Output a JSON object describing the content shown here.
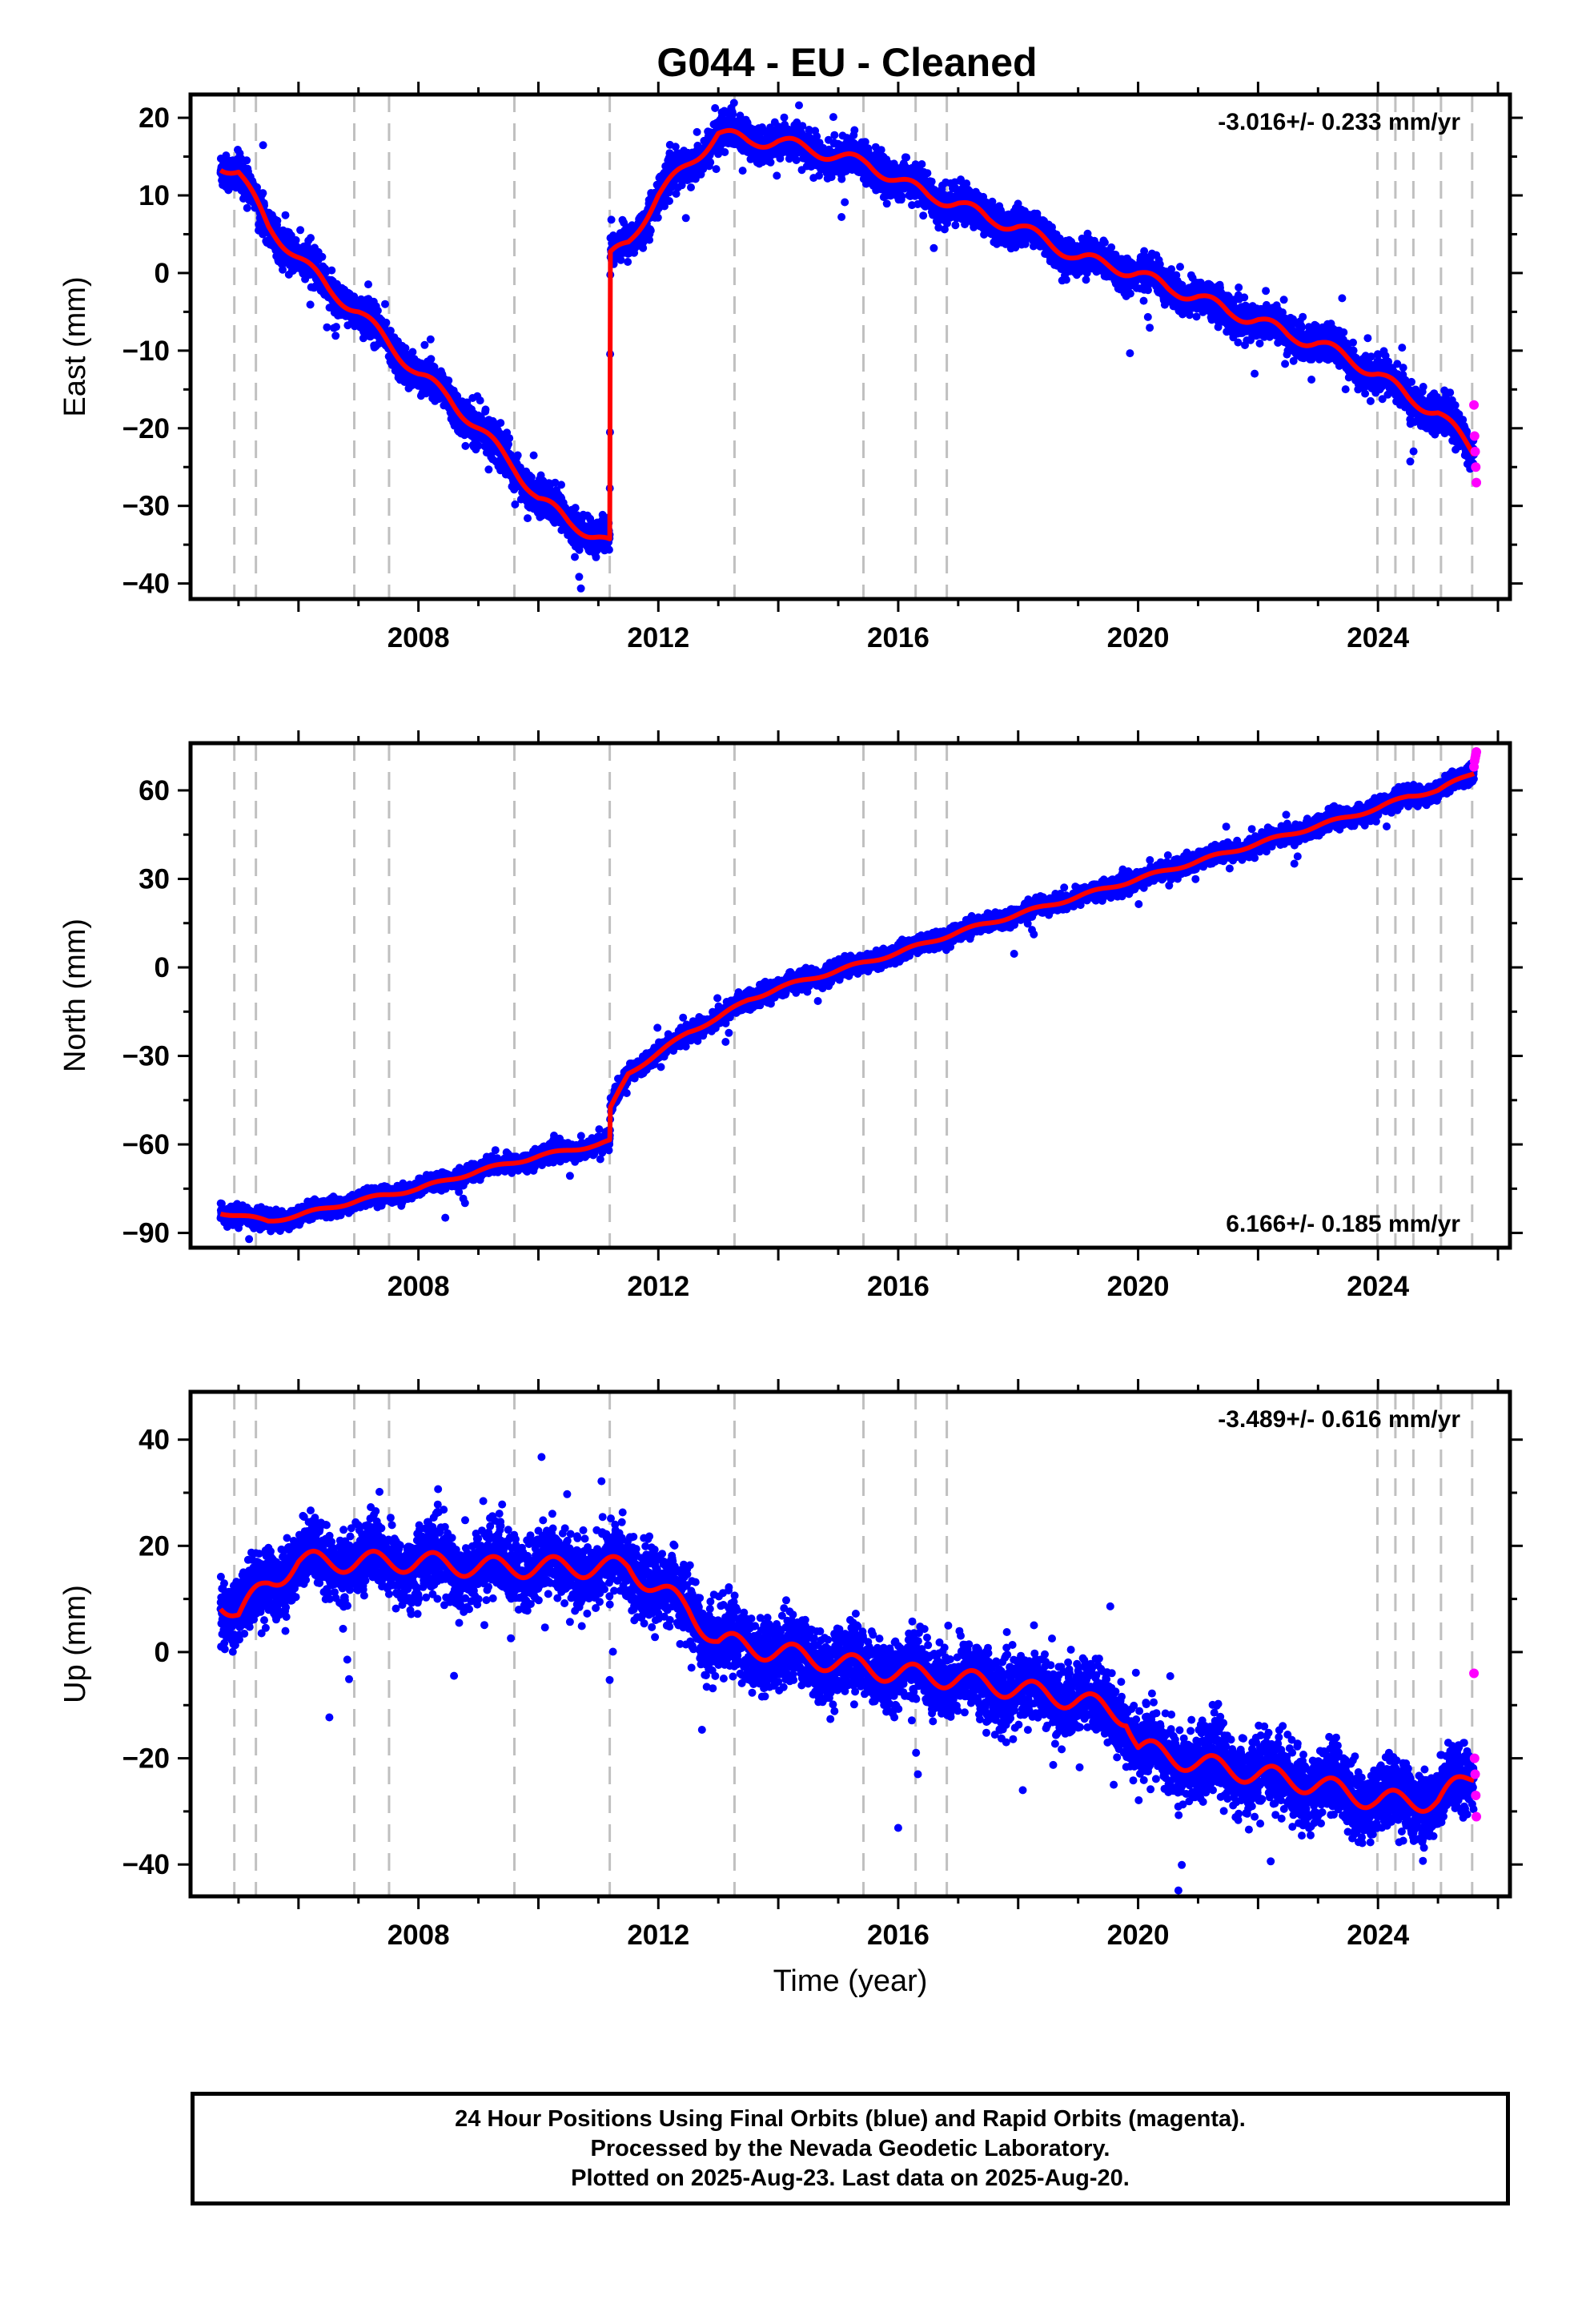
{
  "title": "G044  - EU - Cleaned",
  "footer": {
    "line1": "24 Hour Positions Using Final Orbits (blue) and Rapid Orbits (magenta).",
    "line2": "Processed by the Nevada Geodetic Laboratory.",
    "line3": "Plotted on 2025-Aug-23. Last data on 2025-Aug-20."
  },
  "colors": {
    "final_orbits": "#0000ff",
    "rapid_orbits": "#ff00ff",
    "model_fit": "#ff0000",
    "equipment_change_lines": "#c0c0c0"
  },
  "chart_data": [
    {
      "type": "scatter",
      "ylabel": "East (mm)",
      "xlabel": "",
      "rate_label": "-3.016+/- 0.233 mm/yr",
      "rate_position": "top-right",
      "xlim": [
        2004.2,
        2026.2
      ],
      "ylim": [
        -42,
        23
      ],
      "xticks": [
        2008,
        2012,
        2016,
        2020,
        2024
      ],
      "yticks": [
        -40,
        -30,
        -20,
        -10,
        0,
        10,
        20
      ],
      "grid": false,
      "rate_mm_per_yr": -3.016,
      "seasonal_amplitude_mm": 2,
      "noise_mm": 1.1,
      "offsets": [
        {
          "year": 2011.19,
          "from": -35,
          "to": 2
        }
      ],
      "series": [
        {
          "role": "fit",
          "x": [
            2004.7,
            2005.0,
            2005.5,
            2006.0,
            2006.5,
            2007.0,
            2007.5,
            2008.0,
            2008.5,
            2009.0,
            2009.6,
            2010.0,
            2010.5,
            2011.0,
            2011.19,
            2011.2,
            2011.5,
            2012.0,
            2012.5,
            2013.0,
            2013.5,
            2014.0,
            2014.5,
            2015.0,
            2015.5,
            2016.0,
            2016.5,
            2017.0,
            2017.5,
            2018.0,
            2018.5,
            2019.0,
            2019.5,
            2020.0,
            2020.5,
            2021.0,
            2021.5,
            2022.0,
            2022.5,
            2023.0,
            2023.5,
            2024.0,
            2024.5,
            2025.0,
            2025.6
          ],
          "y": [
            14,
            13,
            6,
            2,
            -2,
            -5,
            -9,
            -13,
            -16,
            -20,
            -25,
            -29,
            -32,
            -34,
            -35,
            2,
            4,
            10,
            14,
            18,
            17,
            17,
            16,
            15,
            14,
            12,
            10,
            9,
            7,
            6,
            4,
            2,
            1,
            0,
            -2,
            -3,
            -5,
            -6,
            -8,
            -9,
            -11,
            -13,
            -16,
            -18,
            -23
          ]
        },
        {
          "role": "rapid",
          "x": [
            2025.6,
            2025.61,
            2025.62,
            2025.63,
            2025.64
          ],
          "y": [
            -17,
            -21,
            -23,
            -25,
            -27
          ]
        }
      ]
    },
    {
      "type": "scatter",
      "ylabel": "North (mm)",
      "xlabel": "",
      "rate_label": "6.166+/- 0.185 mm/yr",
      "rate_position": "bottom-right",
      "xlim": [
        2004.2,
        2026.2
      ],
      "ylim": [
        -95,
        76
      ],
      "xticks": [
        2008,
        2012,
        2016,
        2020,
        2024
      ],
      "yticks": [
        -90,
        -60,
        -30,
        0,
        30,
        60
      ],
      "grid": false,
      "rate_mm_per_yr": 6.166,
      "seasonal_amplitude_mm": 1.5,
      "noise_mm": 1.4,
      "offsets": [
        {
          "year": 2011.19,
          "from": -59,
          "to": -48
        }
      ],
      "series": [
        {
          "role": "fit",
          "x": [
            2004.7,
            2005.5,
            2006.0,
            2007.0,
            2008.0,
            2009.0,
            2010.0,
            2011.0,
            2011.19,
            2011.2,
            2011.5,
            2012.0,
            2012.5,
            2013.0,
            2013.5,
            2014.0,
            2015.0,
            2016.0,
            2017.0,
            2018.0,
            2019.0,
            2020.0,
            2021.0,
            2022.0,
            2023.0,
            2024.0,
            2024.5,
            2025.0,
            2025.6
          ],
          "y": [
            -83,
            -86,
            -84,
            -79,
            -75,
            -69,
            -64,
            -60,
            -59,
            -48,
            -36,
            -29,
            -22,
            -17,
            -11,
            -7,
            -1,
            5,
            12,
            18,
            24,
            30,
            36,
            42,
            48,
            54,
            58,
            60,
            66
          ]
        },
        {
          "role": "rapid",
          "x": [
            2025.6,
            2025.61,
            2025.62,
            2025.63,
            2025.64
          ],
          "y": [
            68,
            70,
            71,
            72,
            73
          ]
        }
      ]
    },
    {
      "type": "scatter",
      "ylabel": "Up (mm)",
      "xlabel": "Time (year)",
      "rate_label": "-3.489+/- 0.616 mm/yr",
      "rate_position": "top-right",
      "xlim": [
        2004.2,
        2026.2
      ],
      "ylim": [
        -46,
        49
      ],
      "xticks": [
        2008,
        2012,
        2016,
        2020,
        2024
      ],
      "yticks": [
        -40,
        -20,
        0,
        20,
        40
      ],
      "grid": false,
      "rate_mm_per_yr": -3.489,
      "seasonal_amplitude_mm": 5,
      "noise_mm": 3.2,
      "offsets": [],
      "series": [
        {
          "role": "fit",
          "x": [
            2004.7,
            2005.0,
            2005.5,
            2006.0,
            2007.0,
            2008.0,
            2009.0,
            2010.0,
            2011.0,
            2011.5,
            2012.0,
            2012.5,
            2013.0,
            2013.5,
            2014.0,
            2015.0,
            2016.0,
            2017.0,
            2018.0,
            2019.0,
            2019.8,
            2020.0,
            2021.0,
            2022.0,
            2023.0,
            2024.0,
            2025.0,
            2025.6
          ],
          "y": [
            10,
            7,
            13,
            17,
            17,
            17,
            16,
            16,
            16,
            16,
            12,
            8,
            2,
            1,
            0,
            -2,
            -4,
            -5,
            -7,
            -9,
            -12,
            -18,
            -21,
            -23,
            -25,
            -28,
            -28,
            -23
          ]
        },
        {
          "role": "rapid",
          "x": [
            2025.6,
            2025.61,
            2025.62,
            2025.63,
            2025.64
          ],
          "y": [
            -4,
            -20,
            -23,
            -27,
            -31
          ]
        }
      ]
    }
  ],
  "equipment_changes": [
    2004.93,
    2005.29,
    2006.93,
    2007.51,
    2009.6,
    2011.19,
    2013.27,
    2015.42,
    2016.29,
    2016.81,
    2023.99,
    2024.29,
    2024.59,
    2025.05,
    2025.57
  ]
}
